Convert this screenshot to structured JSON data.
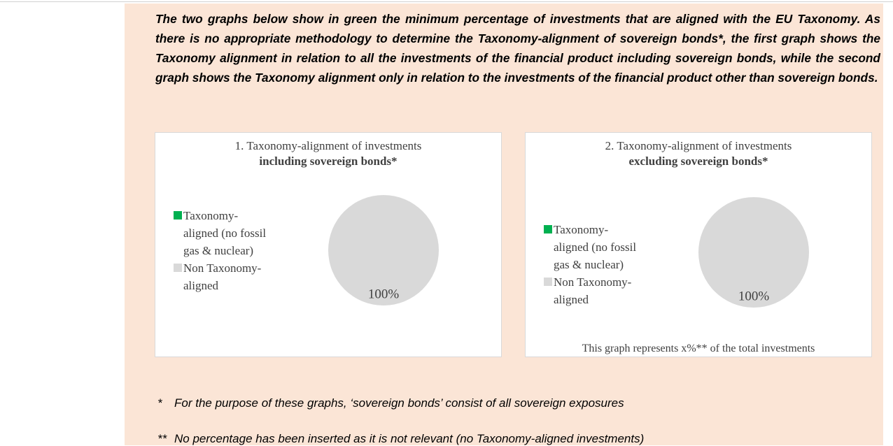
{
  "intro": "The two graphs below show in green the minimum percentage of investments that are aligned with the EU Taxonomy. As there is no appropriate methodology to determine the Taxonomy-alignment of sovereign bonds*, the first graph shows the Taxonomy alignment in relation to all the investments of the financial product including sovereign bonds, while the second graph shows the Taxonomy alignment only in relation to the investments of the financial product other than sovereign bonds.",
  "chart_data": [
    {
      "type": "pie",
      "title": "1. Taxonomy-alignment of investments",
      "subtitle": "including sovereign bonds*",
      "categories": [
        "Taxonomy-aligned (no fossil gas & nuclear)",
        "Non Taxonomy-aligned"
      ],
      "values": [
        0,
        100
      ],
      "value_labels": [
        null,
        "100%"
      ],
      "colors": [
        "#00b050",
        "#d9d9d9"
      ],
      "legend": "left"
    },
    {
      "type": "pie",
      "title": "2. Taxonomy-alignment of investments",
      "subtitle": "excluding sovereign bonds*",
      "categories": [
        "Taxonomy-aligned (no fossil gas & nuclear)",
        "Non Taxonomy-aligned"
      ],
      "values": [
        0,
        100
      ],
      "value_labels": [
        null,
        "100%"
      ],
      "colors": [
        "#00b050",
        "#d9d9d9"
      ],
      "legend": "left",
      "note": "This graph represents x%** of the total investments"
    }
  ],
  "footnotes": [
    {
      "mark": "*",
      "text": "For the purpose of these graphs, ‘sovereign bonds’ consist of all sovereign exposures"
    },
    {
      "mark": "**",
      "text": "No percentage has been inserted as it is not relevant (no Taxonomy-aligned investments)"
    }
  ]
}
